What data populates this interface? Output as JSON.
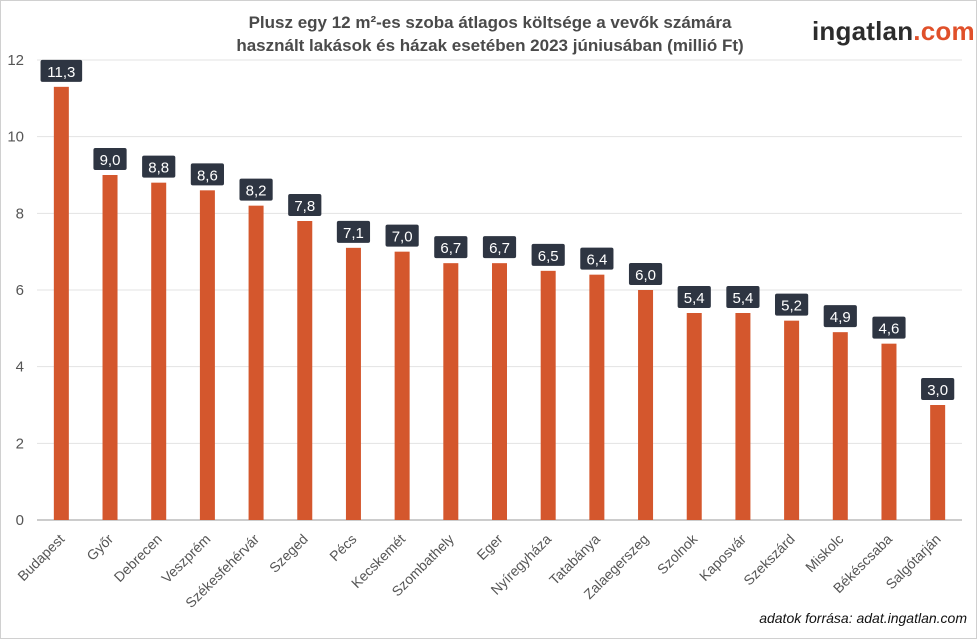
{
  "header": {
    "title_line1": "Plusz egy 12 m²-es szoba átlagos költsége a vevők számára",
    "title_line2": "használt lakások és házak esetében 2023 júniusában (millió Ft)"
  },
  "logo": {
    "name": "ingatlan",
    "tld": ".com"
  },
  "footer": {
    "source": "adatok forrása: adat.ingatlan.com"
  },
  "chart_data": {
    "type": "bar",
    "title": "Plusz egy 12 m²-es szoba átlagos költsége a vevők számára használt lakások és házak esetében 2023 júniusában (millió Ft)",
    "categories": [
      "Budapest",
      "Győr",
      "Debrecen",
      "Veszprém",
      "Székesfehérvár",
      "Szeged",
      "Pécs",
      "Kecskemét",
      "Szombathely",
      "Eger",
      "Nyíregyháza",
      "Tatabánya",
      "Zalaegerszeg",
      "Szolnok",
      "Kaposvár",
      "Szekszárd",
      "Miskolc",
      "Békéscsaba",
      "Salgótarján"
    ],
    "values": [
      11.3,
      9.0,
      8.8,
      8.6,
      8.2,
      7.8,
      7.1,
      7.0,
      6.7,
      6.7,
      6.5,
      6.4,
      6.0,
      5.4,
      5.4,
      5.2,
      4.9,
      4.6,
      3.0
    ],
    "value_labels": [
      "11,3",
      "9,0",
      "8,8",
      "8,6",
      "8,2",
      "7,8",
      "7,1",
      "7,0",
      "6,7",
      "6,7",
      "6,5",
      "6,4",
      "6,0",
      "5,4",
      "5,4",
      "5,2",
      "4,9",
      "4,6",
      "3,0"
    ],
    "yticks": [
      "0",
      "2",
      "4",
      "6",
      "8",
      "10",
      "12"
    ],
    "ylim": [
      0,
      12
    ],
    "grid": true,
    "bar_color": "#d4572d",
    "label_bg_color": "#2e3542"
  }
}
